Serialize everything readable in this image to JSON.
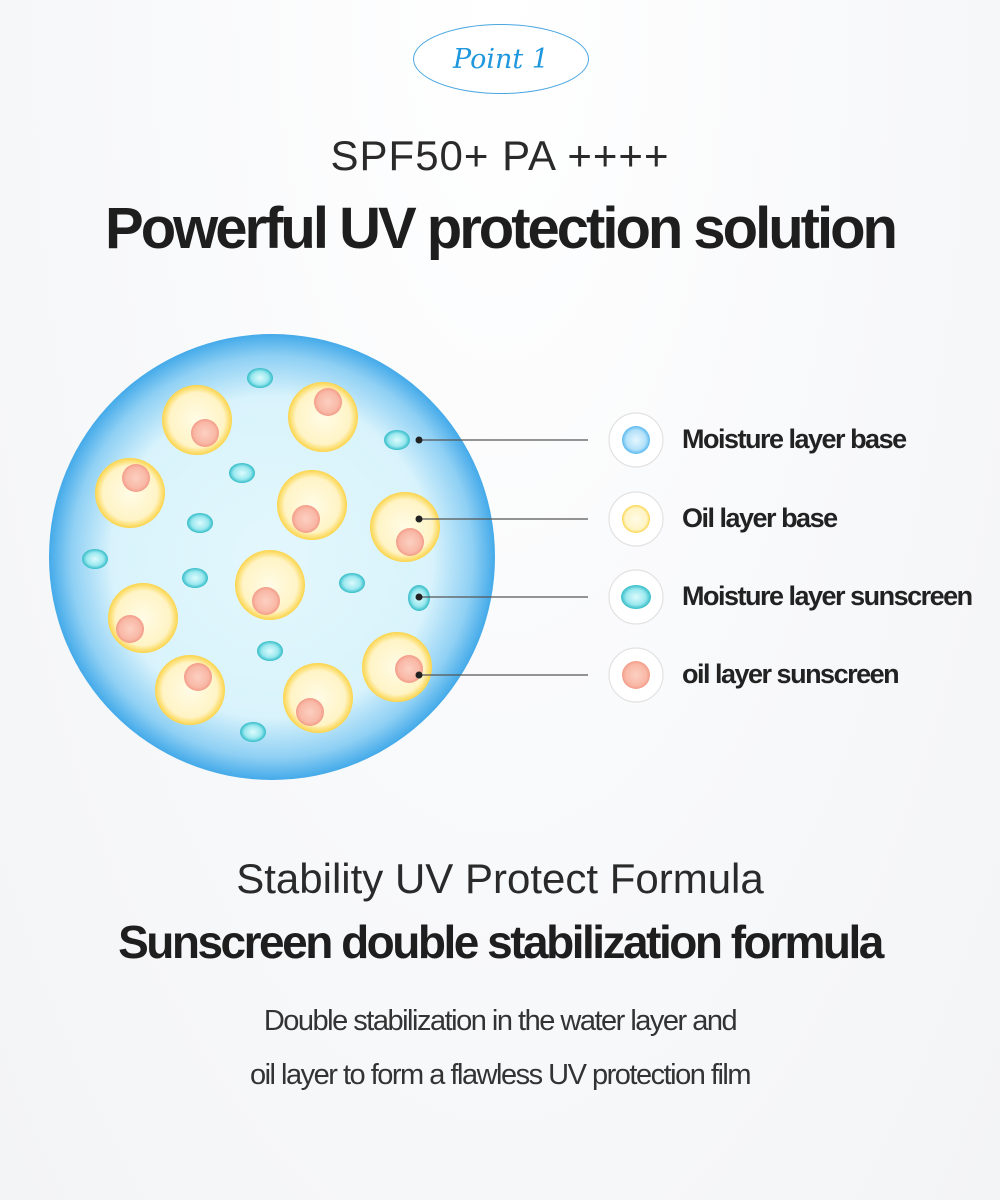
{
  "badge": {
    "label": "Point 1"
  },
  "header": {
    "spf": "SPF50+ PA ++++",
    "title": "Powerful UV protection solution"
  },
  "legend": [
    {
      "label": "Moisture layer base",
      "icon": "moisture-base-icon",
      "color": "#8fd3f7"
    },
    {
      "label": "Oil layer base",
      "icon": "oil-base-icon",
      "color": "#fde98a"
    },
    {
      "label": "Moisture layer sunscreen",
      "icon": "moisture-sunscreen-icon",
      "color": "#5fd4dc"
    },
    {
      "label": "oil layer sunscreen",
      "icon": "oil-sunscreen-icon",
      "color": "#f8b3a0"
    }
  ],
  "footer": {
    "subtitle": "Stability UV Protect Formula",
    "title": "Sunscreen double stabilization formula",
    "description_line1": "Double stabilization in the water layer and",
    "description_line2": "oil layer to form a flawless UV protection film"
  }
}
